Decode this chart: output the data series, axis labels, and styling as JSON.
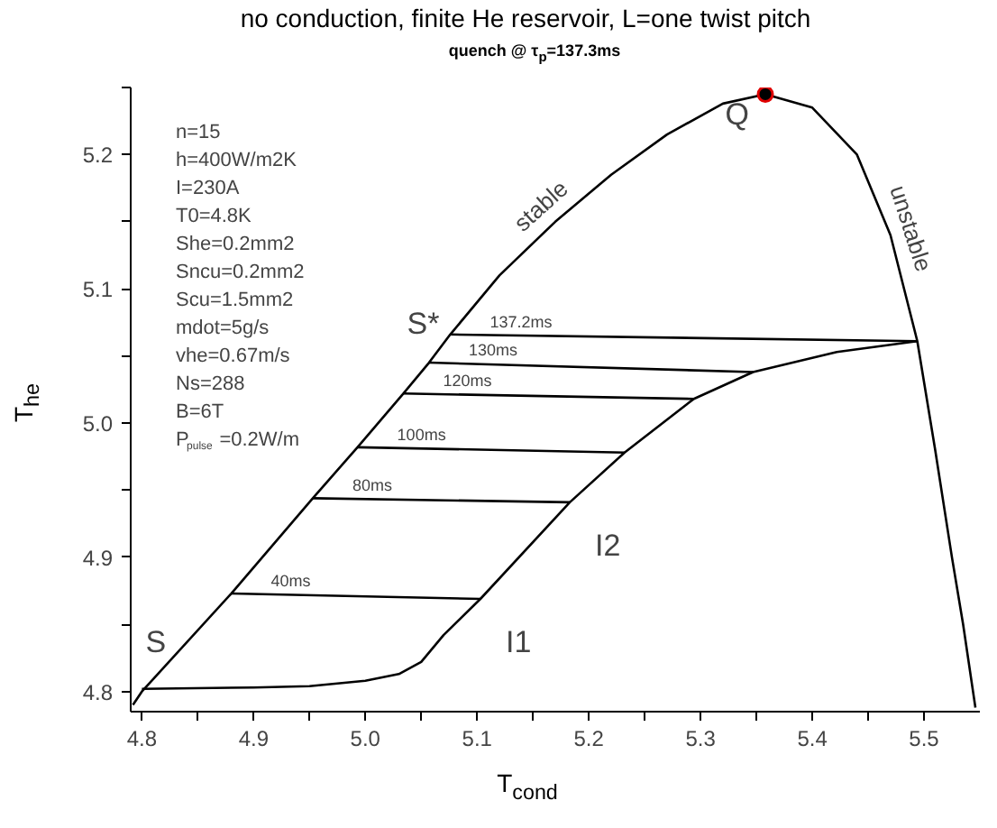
{
  "chart_data": {
    "type": "line",
    "title": "no conduction, finite He reservoir, L=one twist pitch",
    "subtitle": "quench @ τ$_{p}$=137.3ms",
    "xlabel": "T$_{cond}$",
    "ylabel": "T$_{he}$",
    "xlim": [
      4.79,
      5.55
    ],
    "ylim": [
      4.785,
      5.25
    ],
    "xticks": [
      4.8,
      {
        "value": 4.85,
        "label": null
      },
      4.9,
      {
        "value": 4.95,
        "label": null
      },
      {
        "value": 5.0,
        "label": "5.0"
      },
      {
        "value": 5.05,
        "label": null
      },
      5.1,
      {
        "value": 5.15,
        "label": null
      },
      5.2,
      {
        "value": 5.25,
        "label": null
      },
      5.3,
      {
        "value": 5.35,
        "label": null
      },
      5.4,
      {
        "value": 5.45,
        "label": null
      },
      5.5
    ],
    "yticks": [
      4.8,
      {
        "value": 4.85,
        "label": null
      },
      4.9,
      {
        "value": 4.95,
        "label": null
      },
      {
        "value": 5.0,
        "label": "5.0"
      },
      {
        "value": 5.05,
        "label": null
      },
      5.1,
      {
        "value": 5.15,
        "label": null
      },
      5.2,
      {
        "value": 5.25,
        "label": null
      }
    ],
    "grid": false,
    "series": [
      {
        "color": "#000000",
        "x": [
          4.792,
          4.8,
          4.88,
          4.953,
          4.993,
          5.034,
          5.057,
          5.076,
          5.12,
          5.17,
          5.22,
          5.27,
          5.32,
          5.358,
          5.4,
          5.44,
          5.47,
          5.494,
          5.51,
          5.525,
          5.535,
          5.546
        ],
        "values": [
          4.79,
          4.8,
          4.873,
          4.944,
          4.982,
          5.022,
          5.045,
          5.066,
          5.11,
          5.15,
          5.185,
          5.215,
          5.238,
          5.245,
          5.235,
          5.2,
          5.14,
          5.061,
          4.98,
          4.9,
          4.85,
          4.788
        ]
      },
      {
        "color": "#000000",
        "x": [
          4.8,
          4.9,
          4.95,
          5.0,
          5.03,
          5.05,
          5.07,
          5.103,
          5.183,
          5.232,
          5.294,
          5.347,
          5.422,
          5.494
        ],
        "values": [
          4.802,
          4.803,
          4.804,
          4.808,
          4.813,
          4.822,
          4.842,
          4.869,
          4.941,
          4.978,
          5.018,
          5.038,
          5.053,
          5.061
        ]
      },
      {
        "name": "40ms",
        "color": "#000000",
        "x": [
          4.88,
          5.103
        ],
        "values": [
          4.873,
          4.869
        ]
      },
      {
        "name": "80ms",
        "color": "#000000",
        "x": [
          4.953,
          5.183
        ],
        "values": [
          4.944,
          4.941
        ]
      },
      {
        "name": "100ms",
        "color": "#000000",
        "x": [
          4.993,
          5.232
        ],
        "values": [
          4.982,
          4.978
        ]
      },
      {
        "name": "120ms",
        "color": "#000000",
        "x": [
          5.034,
          5.294
        ],
        "values": [
          5.022,
          5.018
        ]
      },
      {
        "name": "130ms",
        "color": "#000000",
        "x": [
          5.057,
          5.347
        ],
        "values": [
          5.045,
          5.038
        ]
      },
      {
        "name": "137.2ms",
        "color": "#000000",
        "x": [
          5.076,
          5.494
        ],
        "values": [
          5.066,
          5.061
        ]
      },
      {
        "type": "scatter",
        "color": "#000000",
        "x": [
          5.358
        ],
        "values": [
          5.245
        ]
      }
    ],
    "annotations": [
      "n=15",
      "h=400W/m2K",
      "I=230A",
      "T0=4.8K",
      "She=0.2mm2",
      "Sncu=0.2mm2",
      "Scu=1.5mm2",
      "mdot=5g/s",
      "vhe=0.67m/s",
      "Ns=288",
      "B=6T",
      "P$_{pulse}$=0.2W/m",
      {
        "text": "Q",
        "x": 5.358,
        "y": 5.245
      },
      {
        "text": "S*",
        "x": 5.076,
        "y": 5.066
      },
      {
        "text": "S",
        "x": 4.8,
        "y": 4.802
      },
      {
        "text": "I1",
        "x": 5.103,
        "y": 4.869
      },
      {
        "text": "I2",
        "x": 5.183,
        "y": 4.941
      },
      {
        "text": "stable",
        "x": 5.17,
        "y": 5.15
      },
      {
        "text": "unstable",
        "x": 5.47,
        "y": 5.14
      }
    ]
  }
}
